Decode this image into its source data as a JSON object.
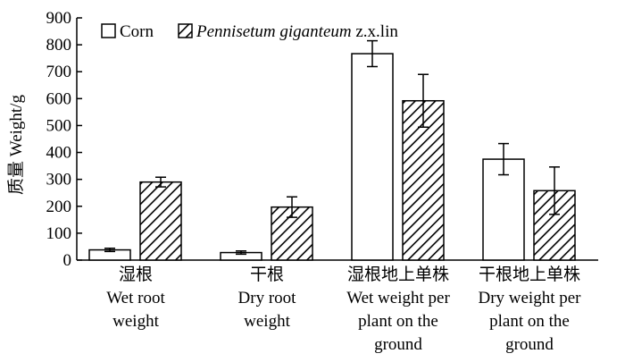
{
  "chart_data": {
    "type": "bar",
    "ylabel": "质量 Weight/g",
    "ylim": [
      0,
      900
    ],
    "yticks": [
      0,
      100,
      200,
      300,
      400,
      500,
      600,
      700,
      800,
      900
    ],
    "categories": [
      [
        "湿根",
        "Wet root",
        "weight"
      ],
      [
        "干根",
        "Dry root",
        "weight"
      ],
      [
        "湿根地上单株",
        "Wet weight per",
        "plant on the",
        "ground"
      ],
      [
        "干根地上单株",
        "Dry weight per",
        "plant on the",
        "ground"
      ]
    ],
    "series": [
      {
        "name": "Corn",
        "pattern": "solid-white",
        "values": [
          38,
          28,
          767,
          375
        ],
        "errors": [
          6,
          6,
          48,
          58
        ]
      },
      {
        "name": "Pennisetum giganteum z.x.lin",
        "pattern": "hatched",
        "values": [
          290,
          197,
          592,
          258
        ],
        "errors": [
          18,
          38,
          98,
          88
        ]
      }
    ],
    "legend": {
      "placement": "top-left",
      "items": [
        {
          "text": "Corn",
          "italic": ""
        },
        {
          "text": " z.x.lin",
          "italic": "Pennisetum giganteum"
        }
      ]
    },
    "grid": false
  }
}
